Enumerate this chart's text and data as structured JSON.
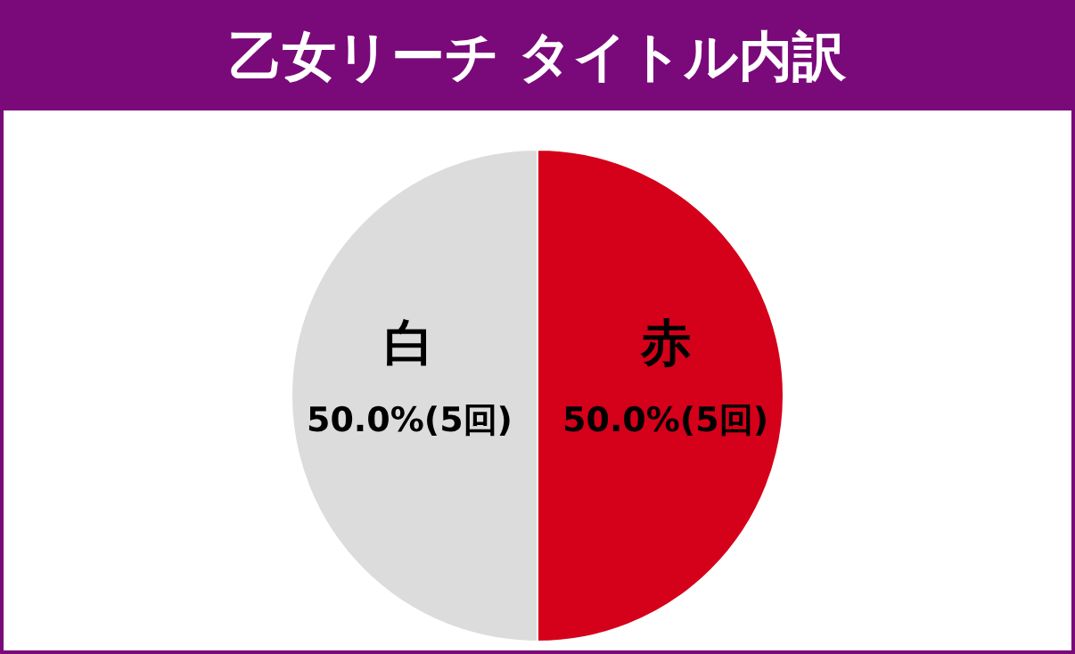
{
  "chart_data": {
    "type": "pie",
    "title": "乙女リーチ タイトル内訳",
    "categories": [
      "白",
      "赤"
    ],
    "values": [
      50.0,
      50.0
    ],
    "colors": [
      "#dcdcdc",
      "#d5001a"
    ],
    "value_labels": [
      "50.0%(5回)",
      "50.0%(5回)"
    ]
  }
}
